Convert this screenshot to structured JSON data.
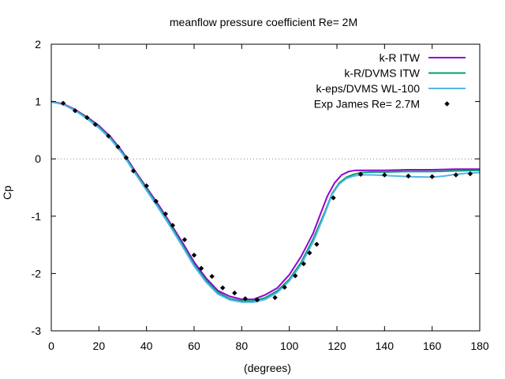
{
  "chart_data": {
    "type": "line",
    "title": "meanflow pressure coefficient  Re= 2M",
    "xlabel": "(degrees)",
    "ylabel": "Cp",
    "xlim": [
      0,
      180
    ],
    "ylim": [
      -3,
      2
    ],
    "xticks": [
      0,
      20,
      40,
      60,
      80,
      100,
      120,
      140,
      160,
      180
    ],
    "yticks": [
      -3,
      -2,
      -1,
      0,
      1,
      2
    ],
    "zero_line": true,
    "grid": false,
    "legend_position": "top-right",
    "series": [
      {
        "name": "k-R ITW",
        "style": "line",
        "color": "#9400d3",
        "x": [
          0,
          5,
          10,
          15,
          20,
          25,
          30,
          35,
          40,
          45,
          50,
          55,
          60,
          65,
          70,
          75,
          80,
          85,
          90,
          95,
          100,
          105,
          110,
          113,
          116,
          119,
          122,
          125,
          128,
          130,
          135,
          140,
          150,
          160,
          170,
          180
        ],
        "y": [
          1.0,
          0.96,
          0.86,
          0.73,
          0.58,
          0.38,
          0.12,
          -0.2,
          -0.5,
          -0.8,
          -1.12,
          -1.45,
          -1.8,
          -2.08,
          -2.3,
          -2.4,
          -2.45,
          -2.45,
          -2.37,
          -2.25,
          -2.02,
          -1.7,
          -1.3,
          -0.97,
          -0.65,
          -0.42,
          -0.28,
          -0.22,
          -0.2,
          -0.2,
          -0.2,
          -0.2,
          -0.19,
          -0.19,
          -0.18,
          -0.18
        ]
      },
      {
        "name": "k-R/DVMS ITW",
        "style": "line",
        "color": "#009e73",
        "x": [
          0,
          5,
          10,
          15,
          20,
          25,
          30,
          35,
          40,
          45,
          50,
          55,
          60,
          65,
          70,
          75,
          80,
          85,
          90,
          95,
          100,
          105,
          110,
          115,
          118,
          121,
          124,
          127,
          130,
          135,
          140,
          150,
          160,
          170,
          180
        ],
        "y": [
          1.0,
          0.95,
          0.85,
          0.72,
          0.56,
          0.36,
          0.1,
          -0.22,
          -0.52,
          -0.83,
          -1.15,
          -1.49,
          -1.84,
          -2.12,
          -2.33,
          -2.44,
          -2.48,
          -2.48,
          -2.42,
          -2.3,
          -2.1,
          -1.8,
          -1.4,
          -0.92,
          -0.6,
          -0.42,
          -0.32,
          -0.27,
          -0.24,
          -0.23,
          -0.23,
          -0.22,
          -0.22,
          -0.21,
          -0.2
        ]
      },
      {
        "name": "k-eps/DVMS WL-100",
        "style": "line",
        "color": "#56b4e9",
        "x": [
          0,
          5,
          10,
          15,
          20,
          25,
          30,
          35,
          40,
          45,
          50,
          55,
          60,
          65,
          70,
          75,
          80,
          85,
          90,
          95,
          100,
          105,
          110,
          115,
          118,
          121,
          124,
          127,
          130,
          135,
          140,
          150,
          160,
          165,
          170,
          175,
          180
        ],
        "y": [
          0.99,
          0.95,
          0.84,
          0.7,
          0.54,
          0.34,
          0.08,
          -0.24,
          -0.55,
          -0.86,
          -1.18,
          -1.52,
          -1.87,
          -2.15,
          -2.36,
          -2.46,
          -2.5,
          -2.5,
          -2.45,
          -2.33,
          -2.13,
          -1.84,
          -1.45,
          -0.95,
          -0.62,
          -0.44,
          -0.34,
          -0.3,
          -0.28,
          -0.28,
          -0.29,
          -0.31,
          -0.32,
          -0.3,
          -0.27,
          -0.25,
          -0.24
        ]
      },
      {
        "name": "Exp James Re= 2.7M",
        "style": "points",
        "color": "#000000",
        "x": [
          5,
          10,
          15,
          18.5,
          24,
          28,
          31.5,
          34.5,
          40,
          44,
          48,
          51,
          56,
          60,
          63,
          67.5,
          72,
          77,
          81.5,
          86.5,
          94,
          98,
          102.5,
          106,
          108.5,
          111.5,
          118.5,
          130,
          140,
          150,
          160,
          170,
          176
        ],
        "y": [
          0.97,
          0.84,
          0.72,
          0.6,
          0.4,
          0.21,
          0.02,
          -0.21,
          -0.47,
          -0.74,
          -0.96,
          -1.16,
          -1.41,
          -1.68,
          -1.91,
          -2.05,
          -2.25,
          -2.34,
          -2.44,
          -2.46,
          -2.42,
          -2.24,
          -2.04,
          -1.83,
          -1.64,
          -1.49,
          -0.68,
          -0.27,
          -0.28,
          -0.3,
          -0.31,
          -0.28,
          -0.26
        ]
      }
    ]
  }
}
